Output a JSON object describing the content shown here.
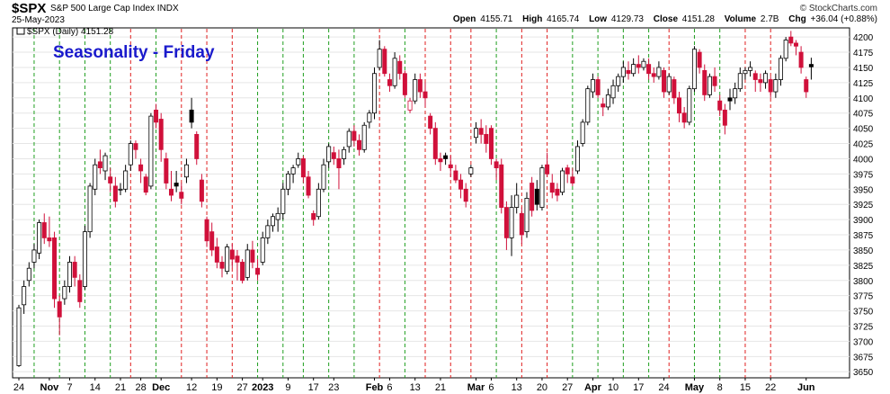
{
  "header": {
    "symbol": "$SPX",
    "name": "S&P 500 Large Cap Index INDX",
    "date": "25-May-2023",
    "brand": "© StockCharts.com",
    "open_label": "Open",
    "open": "4155.71",
    "high_label": "High",
    "high": "4165.74",
    "low_label": "Low",
    "low": "4129.73",
    "close_label": "Close",
    "close": "4151.28",
    "volume_label": "Volume",
    "volume": "2.7B",
    "chg_label": "Chg",
    "chg": "+36.04 (+0.88%)"
  },
  "chart_data": {
    "type": "candlestick",
    "title": "Seasonality - Friday",
    "legend": "$SPX (Daily) 4151.28",
    "ylim": [
      3640,
      4215
    ],
    "y_ticks": [
      4200,
      4175,
      4150,
      4125,
      4100,
      4075,
      4050,
      4025,
      4000,
      3975,
      3950,
      3925,
      3900,
      3875,
      3850,
      3825,
      3800,
      3775,
      3750,
      3725,
      3700,
      3675,
      3650
    ],
    "x_ticks": [
      {
        "label": "24",
        "bar": 0,
        "bold": false
      },
      {
        "label": "Nov",
        "bar": 6,
        "bold": true
      },
      {
        "label": "7",
        "bar": 10,
        "bold": false
      },
      {
        "label": "14",
        "bar": 15,
        "bold": false
      },
      {
        "label": "21",
        "bar": 20,
        "bold": false
      },
      {
        "label": "28",
        "bar": 24,
        "bold": false
      },
      {
        "label": "Dec",
        "bar": 28,
        "bold": true
      },
      {
        "label": "12",
        "bar": 34,
        "bold": false
      },
      {
        "label": "19",
        "bar": 39,
        "bold": false
      },
      {
        "label": "27",
        "bar": 44,
        "bold": false
      },
      {
        "label": "2023",
        "bar": 48,
        "bold": true
      },
      {
        "label": "9",
        "bar": 53,
        "bold": false
      },
      {
        "label": "17",
        "bar": 58,
        "bold": false
      },
      {
        "label": "23",
        "bar": 62,
        "bold": false
      },
      {
        "label": "Feb",
        "bar": 70,
        "bold": true
      },
      {
        "label": "6",
        "bar": 73,
        "bold": false
      },
      {
        "label": "13",
        "bar": 78,
        "bold": false
      },
      {
        "label": "21",
        "bar": 83,
        "bold": false
      },
      {
        "label": "Mar",
        "bar": 90,
        "bold": true
      },
      {
        "label": "6",
        "bar": 93,
        "bold": false
      },
      {
        "label": "13",
        "bar": 98,
        "bold": false
      },
      {
        "label": "20",
        "bar": 103,
        "bold": false
      },
      {
        "label": "27",
        "bar": 108,
        "bold": false
      },
      {
        "label": "Apr",
        "bar": 113,
        "bold": true
      },
      {
        "label": "10",
        "bar": 117,
        "bold": false
      },
      {
        "label": "17",
        "bar": 122,
        "bold": false
      },
      {
        "label": "24",
        "bar": 127,
        "bold": false
      },
      {
        "label": "May",
        "bar": 133,
        "bold": true
      },
      {
        "label": "8",
        "bar": 138,
        "bold": false
      },
      {
        "label": "15",
        "bar": 143,
        "bold": false
      },
      {
        "label": "22",
        "bar": 148,
        "bold": false
      },
      {
        "label": "Jun",
        "bar": 155,
        "bold": true
      }
    ],
    "friday_lines": [
      {
        "bar": 3,
        "color": "green"
      },
      {
        "bar": 8,
        "color": "green"
      },
      {
        "bar": 13,
        "color": "green"
      },
      {
        "bar": 18,
        "color": "green"
      },
      {
        "bar": 22,
        "color": "red"
      },
      {
        "bar": 27,
        "color": "green"
      },
      {
        "bar": 32,
        "color": "red"
      },
      {
        "bar": 37,
        "color": "red"
      },
      {
        "bar": 42,
        "color": "red"
      },
      {
        "bar": 47,
        "color": "green"
      },
      {
        "bar": 52,
        "color": "green"
      },
      {
        "bar": 56,
        "color": "green"
      },
      {
        "bar": 61,
        "color": "green"
      },
      {
        "bar": 66,
        "color": "green"
      },
      {
        "bar": 71,
        "color": "red"
      },
      {
        "bar": 76,
        "color": "green"
      },
      {
        "bar": 80,
        "color": "red"
      },
      {
        "bar": 85,
        "color": "red"
      },
      {
        "bar": 89,
        "color": "red"
      },
      {
        "bar": 94,
        "color": "green"
      },
      {
        "bar": 99,
        "color": "red"
      },
      {
        "bar": 104,
        "color": "red"
      },
      {
        "bar": 109,
        "color": "green"
      },
      {
        "bar": 114,
        "color": "green"
      },
      {
        "bar": 119,
        "color": "green"
      },
      {
        "bar": 124,
        "color": "green"
      },
      {
        "bar": 128,
        "color": "red"
      },
      {
        "bar": 133,
        "color": "green"
      },
      {
        "bar": 138,
        "color": "green"
      },
      {
        "bar": 143,
        "color": "red"
      },
      {
        "bar": 148,
        "color": "red"
      }
    ],
    "ohlc": [
      [
        3660,
        3760,
        3658,
        3755
      ],
      [
        3760,
        3800,
        3745,
        3790
      ],
      [
        3800,
        3830,
        3790,
        3820
      ],
      [
        3830,
        3860,
        3820,
        3850
      ],
      [
        3845,
        3900,
        3835,
        3895
      ],
      [
        3895,
        3910,
        3860,
        3870
      ],
      [
        3870,
        3905,
        3855,
        3865
      ],
      [
        3870,
        3880,
        3755,
        3770
      ],
      [
        3765,
        3775,
        3710,
        3740
      ],
      [
        3770,
        3800,
        3760,
        3790
      ],
      [
        3790,
        3840,
        3780,
        3830
      ],
      [
        3830,
        3840,
        3790,
        3805
      ],
      [
        3800,
        3810,
        3755,
        3765
      ],
      [
        3790,
        3890,
        3785,
        3880
      ],
      [
        3880,
        3960,
        3870,
        3955
      ],
      [
        3950,
        4000,
        3940,
        3990
      ],
      [
        3995,
        4015,
        3975,
        3985
      ],
      [
        3980,
        4010,
        3965,
        4005
      ],
      [
        3970,
        3985,
        3945,
        3960
      ],
      [
        3955,
        3970,
        3920,
        3930
      ],
      [
        3950,
        3960,
        3940,
        3950
      ],
      [
        3950,
        3990,
        3945,
        3980
      ],
      [
        3990,
        4030,
        3980,
        4025
      ],
      [
        4025,
        4030,
        4000,
        4015
      ],
      [
        3990,
        4000,
        3960,
        3980
      ],
      [
        3970,
        3975,
        3940,
        3945
      ],
      [
        3955,
        4075,
        3950,
        4070
      ],
      [
        4080,
        4090,
        4050,
        4060
      ],
      [
        4065,
        4075,
        3995,
        4015
      ],
      [
        4000,
        4010,
        3950,
        3960
      ],
      [
        3950,
        3980,
        3930,
        3940
      ],
      [
        3960,
        3980,
        3945,
        3955
      ],
      [
        3945,
        3960,
        3925,
        3935
      ],
      [
        3970,
        4000,
        3960,
        3990
      ],
      [
        4080,
        4100,
        4050,
        4060
      ],
      [
        4040,
        4045,
        3990,
        4000
      ],
      [
        3965,
        3975,
        3920,
        3930
      ],
      [
        3900,
        3905,
        3855,
        3865
      ],
      [
        3880,
        3895,
        3840,
        3850
      ],
      [
        3855,
        3870,
        3820,
        3830
      ],
      [
        3830,
        3840,
        3805,
        3820
      ],
      [
        3815,
        3860,
        3810,
        3855
      ],
      [
        3850,
        3860,
        3820,
        3835
      ],
      [
        3840,
        3850,
        3800,
        3830
      ],
      [
        3830,
        3835,
        3795,
        3800
      ],
      [
        3805,
        3860,
        3800,
        3850
      ],
      [
        3850,
        3865,
        3820,
        3830
      ],
      [
        3820,
        3835,
        3800,
        3810
      ],
      [
        3830,
        3880,
        3825,
        3870
      ],
      [
        3870,
        3900,
        3860,
        3890
      ],
      [
        3890,
        3910,
        3880,
        3905
      ],
      [
        3900,
        3920,
        3880,
        3910
      ],
      [
        3910,
        3960,
        3900,
        3950
      ],
      [
        3950,
        3980,
        3940,
        3975
      ],
      [
        3975,
        3990,
        3960,
        3985
      ],
      [
        3990,
        4010,
        3985,
        4000
      ],
      [
        4000,
        4005,
        3960,
        3970
      ],
      [
        3970,
        3980,
        3935,
        3940
      ],
      [
        3910,
        3915,
        3890,
        3900
      ],
      [
        3905,
        3960,
        3900,
        3950
      ],
      [
        3950,
        4000,
        3945,
        3990
      ],
      [
        3995,
        4025,
        3985,
        4020
      ],
      [
        4010,
        4020,
        3990,
        4000
      ],
      [
        4000,
        4015,
        3950,
        3985
      ],
      [
        4000,
        4020,
        3990,
        4015
      ],
      [
        4020,
        4050,
        4010,
        4045
      ],
      [
        4045,
        4055,
        4020,
        4030
      ],
      [
        4030,
        4040,
        4005,
        4015
      ],
      [
        4015,
        4060,
        4010,
        4055
      ],
      [
        4060,
        4080,
        4050,
        4075
      ],
      [
        4075,
        4150,
        4065,
        4140
      ],
      [
        4150,
        4195,
        4145,
        4180
      ],
      [
        4180,
        4185,
        4135,
        4140
      ],
      [
        4130,
        4140,
        4110,
        4120
      ],
      [
        4120,
        4175,
        4115,
        4165
      ],
      [
        4160,
        4170,
        4130,
        4140
      ],
      [
        4140,
        4145,
        4100,
        4105
      ],
      [
        4080,
        4100,
        4075,
        4095
      ],
      [
        4095,
        4140,
        4090,
        4130
      ],
      [
        4130,
        4140,
        4100,
        4110
      ],
      [
        4110,
        4125,
        4085,
        4100
      ],
      [
        4070,
        4075,
        4040,
        4050
      ],
      [
        4050,
        4060,
        3990,
        4000
      ],
      [
        4000,
        4010,
        3980,
        3995
      ],
      [
        4005,
        4010,
        3990,
        4000
      ],
      [
        3990,
        4005,
        3970,
        3985
      ],
      [
        3980,
        3990,
        3960,
        3965
      ],
      [
        3965,
        3975,
        3935,
        3950
      ],
      [
        3950,
        3960,
        3920,
        3930
      ],
      [
        3975,
        3990,
        3970,
        3985
      ],
      [
        4035,
        4060,
        4025,
        4050
      ],
      [
        4050,
        4065,
        4025,
        4040
      ],
      [
        4040,
        4055,
        4010,
        4025
      ],
      [
        4050,
        4055,
        3990,
        4000
      ],
      [
        3995,
        4000,
        3965,
        3985
      ],
      [
        3990,
        4000,
        3910,
        3920
      ],
      [
        3920,
        3930,
        3850,
        3870
      ],
      [
        3870,
        3940,
        3840,
        3920
      ],
      [
        3920,
        3960,
        3910,
        3940
      ],
      [
        3910,
        3920,
        3860,
        3875
      ],
      [
        3880,
        3945,
        3870,
        3935
      ],
      [
        3960,
        3970,
        3905,
        3915
      ],
      [
        3950,
        3965,
        3915,
        3925
      ],
      [
        3920,
        3990,
        3915,
        3985
      ],
      [
        3990,
        4010,
        3970,
        3975
      ],
      [
        3960,
        3975,
        3935,
        3945
      ],
      [
        3950,
        3960,
        3930,
        3940
      ],
      [
        3945,
        3985,
        3940,
        3980
      ],
      [
        3985,
        3990,
        3960,
        3975
      ],
      [
        3970,
        3985,
        3955,
        3960
      ],
      [
        3980,
        4030,
        3975,
        4020
      ],
      [
        4025,
        4065,
        4020,
        4060
      ],
      [
        4060,
        4120,
        4055,
        4115
      ],
      [
        4110,
        4140,
        4100,
        4130
      ],
      [
        4130,
        4135,
        4100,
        4105
      ],
      [
        4090,
        4100,
        4070,
        4085
      ],
      [
        4085,
        4115,
        4080,
        4105
      ],
      [
        4100,
        4130,
        4090,
        4120
      ],
      [
        4120,
        4140,
        4110,
        4135
      ],
      [
        4135,
        4160,
        4125,
        4150
      ],
      [
        4145,
        4160,
        4130,
        4140
      ],
      [
        4140,
        4165,
        4135,
        4155
      ],
      [
        4155,
        4170,
        4140,
        4150
      ],
      [
        4150,
        4165,
        4145,
        4160
      ],
      [
        4155,
        4165,
        4130,
        4140
      ],
      [
        4140,
        4150,
        4125,
        4135
      ],
      [
        4135,
        4160,
        4130,
        4150
      ],
      [
        4145,
        4150,
        4100,
        4110
      ],
      [
        4110,
        4140,
        4105,
        4135
      ],
      [
        4130,
        4135,
        4090,
        4100
      ],
      [
        4100,
        4110,
        4060,
        4075
      ],
      [
        4075,
        4085,
        4050,
        4060
      ],
      [
        4060,
        4120,
        4055,
        4115
      ],
      [
        4115,
        4185,
        4110,
        4180
      ],
      [
        4175,
        4180,
        4140,
        4150
      ],
      [
        4145,
        4155,
        4095,
        4105
      ],
      [
        4105,
        4140,
        4100,
        4135
      ],
      [
        4135,
        4150,
        4110,
        4120
      ],
      [
        4095,
        4105,
        4070,
        4080
      ],
      [
        4080,
        4090,
        4040,
        4055
      ],
      [
        4100,
        4115,
        4080,
        4095
      ],
      [
        4100,
        4125,
        4090,
        4115
      ],
      [
        4115,
        4150,
        4110,
        4140
      ],
      [
        4140,
        4150,
        4130,
        4145
      ],
      [
        4145,
        4160,
        4135,
        4150
      ],
      [
        4140,
        4145,
        4110,
        4130
      ],
      [
        4130,
        4140,
        4110,
        4125
      ],
      [
        4125,
        4145,
        4115,
        4140
      ],
      [
        4130,
        4135,
        4100,
        4110
      ],
      [
        4110,
        4140,
        4100,
        4130
      ],
      [
        4130,
        4170,
        4120,
        4165
      ],
      [
        4165,
        4200,
        4160,
        4195
      ],
      [
        4200,
        4210,
        4185,
        4190
      ],
      [
        4190,
        4195,
        4170,
        4185
      ],
      [
        4175,
        4185,
        4140,
        4150
      ],
      [
        4130,
        4135,
        4100,
        4110
      ],
      [
        4155,
        4166,
        4130,
        4151
      ]
    ]
  }
}
